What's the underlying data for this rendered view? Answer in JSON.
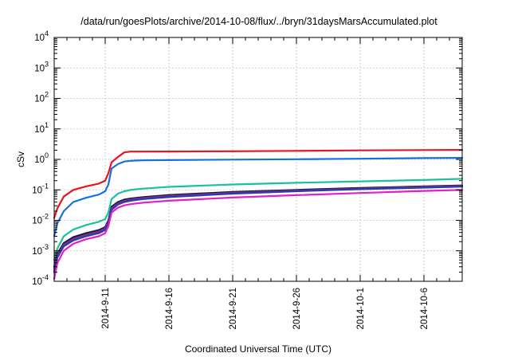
{
  "chart_data": {
    "type": "line",
    "title": "/data/run/goesPlots/archive/2014-10-08/flux/../bryn/31daysMarsAccumulated.plot",
    "xlabel": "Coordinated Universal Time (UTC)",
    "ylabel": "cSv",
    "yscale": "log",
    "ylim": [
      0.0001,
      10000
    ],
    "xlim": [
      "2014-09-07",
      "2014-10-09"
    ],
    "x_tick_labels": [
      "2014-9-11",
      "2014-9-16",
      "2014-9-21",
      "2014-9-26",
      "2014-10-1",
      "2014-10-6"
    ],
    "y_tick_values": [
      0.0001,
      0.001,
      0.01,
      0.1,
      1,
      10,
      100,
      1000,
      10000
    ],
    "grid": true,
    "legend": "none",
    "x": [
      "2014-09-07",
      "2014-09-07T06:00",
      "2014-09-07T18:00",
      "2014-09-08T12:00",
      "2014-09-09T12:00",
      "2014-09-10T12:00",
      "2014-09-11",
      "2014-09-11T06:00",
      "2014-09-11T12:00",
      "2014-09-12",
      "2014-09-12T12:00",
      "2014-09-13",
      "2014-09-13T12:00",
      "2014-09-14",
      "2014-09-16",
      "2014-09-21",
      "2014-09-26",
      "2014-10-01",
      "2014-10-06",
      "2014-10-09"
    ],
    "series": [
      {
        "color": "#e8141e",
        "values": [
          0.012,
          0.025,
          0.06,
          0.1,
          0.13,
          0.16,
          0.2,
          0.35,
          0.8,
          1.2,
          1.7,
          1.8,
          1.8,
          1.8,
          1.82,
          1.85,
          1.9,
          1.97,
          2.02,
          2.05
        ]
      },
      {
        "color": "#1470e0",
        "values": [
          0.003,
          0.008,
          0.02,
          0.04,
          0.055,
          0.07,
          0.09,
          0.15,
          0.5,
          0.7,
          0.85,
          0.9,
          0.92,
          0.93,
          0.95,
          0.98,
          1.01,
          1.05,
          1.1,
          1.12
        ]
      },
      {
        "color": "#19c29a",
        "values": [
          0.0005,
          0.0012,
          0.003,
          0.005,
          0.007,
          0.009,
          0.011,
          0.018,
          0.05,
          0.075,
          0.09,
          0.1,
          0.105,
          0.11,
          0.125,
          0.15,
          0.17,
          0.19,
          0.21,
          0.23
        ]
      },
      {
        "color": "#1a1a2a",
        "values": [
          0.0003,
          0.0008,
          0.0018,
          0.0028,
          0.0038,
          0.0048,
          0.006,
          0.01,
          0.028,
          0.04,
          0.048,
          0.052,
          0.055,
          0.058,
          0.068,
          0.085,
          0.1,
          0.115,
          0.13,
          0.14
        ]
      },
      {
        "color": "#7a2a9a",
        "values": [
          0.00025,
          0.0007,
          0.0016,
          0.0025,
          0.0034,
          0.0043,
          0.0055,
          0.009,
          0.025,
          0.036,
          0.044,
          0.048,
          0.051,
          0.054,
          0.063,
          0.08,
          0.095,
          0.11,
          0.125,
          0.135
        ]
      },
      {
        "color": "#2e3aa8",
        "values": [
          0.0002,
          0.0006,
          0.0014,
          0.0022,
          0.003,
          0.0038,
          0.0048,
          0.008,
          0.022,
          0.033,
          0.04,
          0.044,
          0.047,
          0.05,
          0.058,
          0.075,
          0.09,
          0.105,
          0.118,
          0.128
        ]
      },
      {
        "color": "#e020c8",
        "values": [
          0.00012,
          0.0004,
          0.001,
          0.0017,
          0.0024,
          0.003,
          0.0038,
          0.0065,
          0.018,
          0.026,
          0.031,
          0.034,
          0.036,
          0.038,
          0.044,
          0.056,
          0.067,
          0.079,
          0.092,
          0.1
        ]
      }
    ]
  }
}
